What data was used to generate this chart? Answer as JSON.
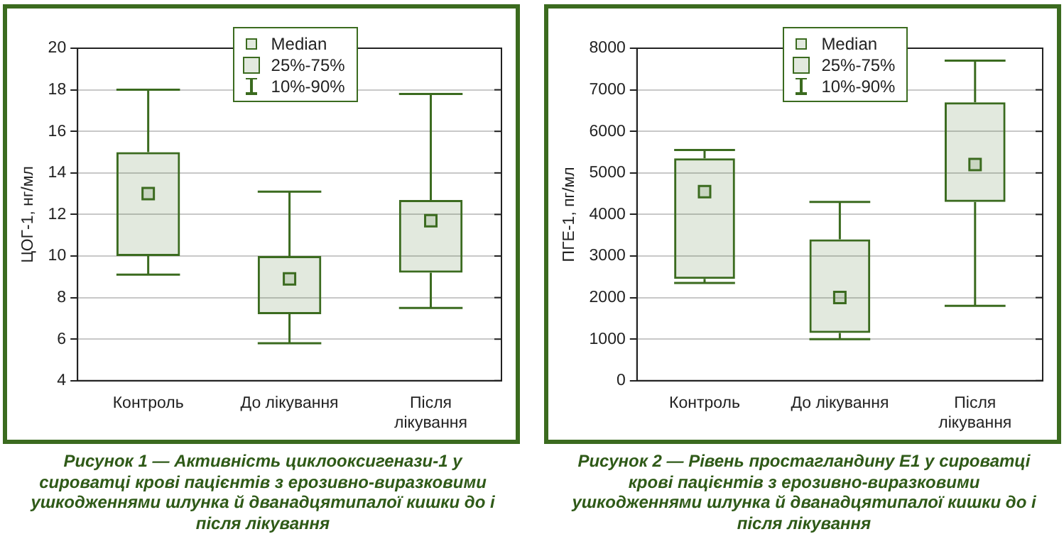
{
  "chart_data": [
    {
      "type": "box",
      "title": "Рисунок 1 — Активність циклооксигенази-1 у сироватці крові пацієнтів з ерозивно-виразковими ушкодженнями шлунка й дванадцятипалої кишки до і після лікування",
      "ylabel": "ЦОГ-1, нг/мл",
      "categories": [
        "Контроль",
        "До лікування",
        "Після лікування"
      ],
      "ylim": [
        4,
        20
      ],
      "yticks": [
        4,
        6,
        8,
        10,
        12,
        14,
        16,
        18,
        20
      ],
      "grid": "y",
      "annotations": [
        "Median",
        "25%-75%",
        "10%-90%"
      ],
      "series": [
        {
          "color": "#3b6b1f",
          "boxes": [
            {
              "low": 9.1,
              "q1": 10,
              "median": 13,
              "q3": 15,
              "high": 18
            },
            {
              "low": 5.8,
              "q1": 7.2,
              "median": 8.9,
              "q3": 10,
              "high": 13.1
            },
            {
              "low": 7.5,
              "q1": 9.2,
              "median": 11.7,
              "q3": 12.7,
              "high": 17.8
            }
          ]
        }
      ]
    },
    {
      "type": "box",
      "title": "Рисунок 2 — Рівень простагландину Е1 у сироватці крові пацієнтів з ерозивно-виразковими ушкодженнями шлунка й дванадцятипалої кишки до і після лікування",
      "ylabel": "ПГЕ-1, пг/мл",
      "categories": [
        "Контроль",
        "До лікування",
        "Після лікування"
      ],
      "ylim": [
        0,
        8000
      ],
      "yticks": [
        0,
        1000,
        2000,
        3000,
        4000,
        5000,
        6000,
        7000,
        8000
      ],
      "grid": "y",
      "annotations": [
        "Median",
        "25%-75%",
        "10%-90%"
      ],
      "series": [
        {
          "color": "#3b6b1f",
          "boxes": [
            {
              "low": 2350,
              "q1": 2450,
              "median": 4550,
              "q3": 5350,
              "high": 5550
            },
            {
              "low": 1000,
              "q1": 1150,
              "median": 2000,
              "q3": 3400,
              "high": 4300
            },
            {
              "low": 1800,
              "q1": 4300,
              "median": 5200,
              "q3": 6700,
              "high": 7700
            }
          ]
        }
      ]
    }
  ]
}
